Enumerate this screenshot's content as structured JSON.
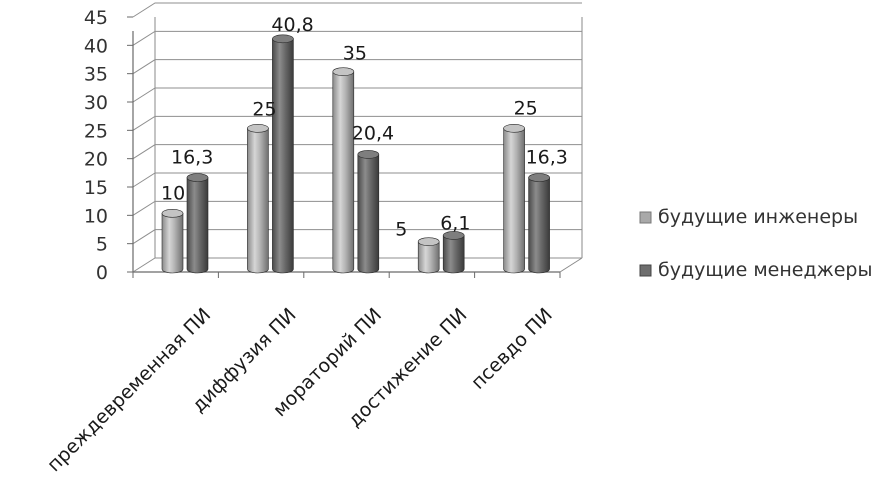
{
  "chart_data": {
    "type": "bar",
    "categories": [
      "преждевременная ПИ",
      "диффузия ПИ",
      "мораторий ПИ",
      "достижение ПИ",
      "псевдо ПИ"
    ],
    "series": [
      {
        "name": "будущие инженеры",
        "values": [
          10,
          25,
          35,
          5,
          25
        ],
        "labels": [
          "10",
          "25",
          "35",
          "5",
          "25"
        ],
        "color": "#a9a9a9"
      },
      {
        "name": "будущие менеджеры",
        "values": [
          16.3,
          40.8,
          20.4,
          6.1,
          16.3
        ],
        "labels": [
          "16,3",
          "40,8",
          "20,4",
          "6,1",
          "16,3"
        ],
        "color": "#6e6e6e"
      }
    ],
    "ylim": [
      0,
      45
    ],
    "yticks": [
      0,
      5,
      10,
      15,
      20,
      25,
      30,
      35,
      40,
      45
    ],
    "grid": true,
    "legend_position": "right",
    "style": "3d-cylinder"
  }
}
